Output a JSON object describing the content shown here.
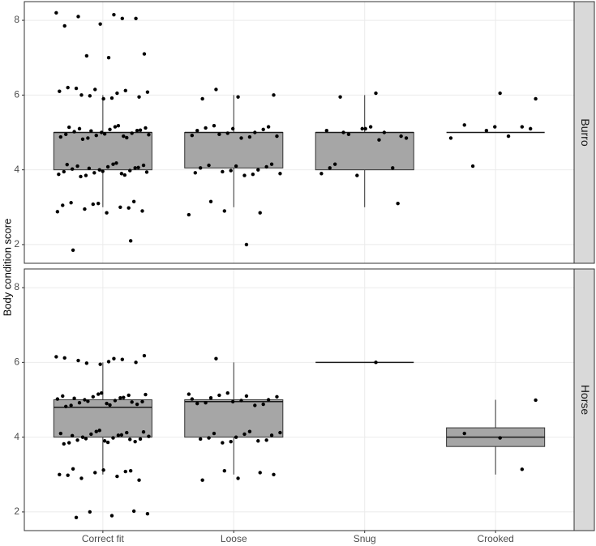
{
  "chart_data": {
    "type": "box",
    "y_label": "Body condition score",
    "categories": [
      "Correct fit",
      "Loose",
      "Snug",
      "Crooked"
    ],
    "ylim": [
      1.5,
      8.5
    ],
    "yticks": [
      2,
      4,
      6,
      8
    ],
    "grid": true,
    "facets": [
      {
        "name": "Burro",
        "boxes": [
          {
            "low": 3,
            "q1": 4,
            "median": 5,
            "q3": 5,
            "high": 6
          },
          {
            "low": 3,
            "q1": 4.05,
            "median": 5,
            "q3": 5,
            "high": 6
          },
          {
            "low": 3,
            "q1": 4,
            "median": 5,
            "q3": 5,
            "high": 6
          },
          {
            "low": 5,
            "q1": 5,
            "median": 5,
            "q3": 5,
            "high": 5
          }
        ],
        "points": [
          [
            8.2,
            8.15,
            8.1,
            8.05,
            7.9,
            7.85,
            8.05,
            7.05,
            7.1,
            7.0,
            1.85,
            2.1,
            6.15,
            6.1,
            6.05,
            6.0,
            5.95,
            5.9,
            6.2,
            6.12,
            5.98,
            6.08,
            5.92,
            6.18,
            3.15,
            3.1,
            3.05,
            3.0,
            2.95,
            2.9,
            2.85,
            3.12,
            2.98,
            3.08,
            2.88,
            5.15,
            5.1,
            5.05,
            5.0,
            4.95,
            4.9,
            4.85,
            5.12,
            5.08,
            5.02,
            4.98,
            4.92,
            4.88,
            5.18,
            4.82,
            5.06,
            4.96,
            5.14,
            4.86,
            5.04,
            4.94,
            4.15,
            4.1,
            4.05,
            4.0,
            3.95,
            3.9,
            3.85,
            4.12,
            4.08,
            4.02,
            3.98,
            3.92,
            3.88,
            4.18,
            3.82,
            4.06,
            3.96,
            4.14,
            3.86,
            4.04,
            3.94
          ],
          [
            6.15,
            6.0,
            5.95,
            5.9,
            2.85,
            2.9,
            2.8,
            2.0,
            3.15,
            5.15,
            5.1,
            5.05,
            5.0,
            4.95,
            4.9,
            4.85,
            5.12,
            5.08,
            4.98,
            4.92,
            4.88,
            5.18,
            4.15,
            4.1,
            4.05,
            4.0,
            3.95,
            3.9,
            3.85,
            4.12,
            4.08,
            3.98,
            3.92,
            3.88
          ],
          [
            6.05,
            5.95,
            3.1,
            5.1,
            5.05,
            5.0,
            4.95,
            4.85,
            5.15,
            4.15,
            4.05,
            3.85,
            3.9,
            4.8,
            5.0,
            4.9,
            5.1,
            4.05
          ],
          [
            5.9,
            6.05,
            5.2,
            5.15,
            5.05,
            4.85,
            4.9,
            4.1,
            5.1,
            5.15
          ]
        ]
      },
      {
        "name": "Horse",
        "boxes": [
          {
            "low": 3,
            "q1": 4,
            "median": 4.8,
            "q3": 5,
            "high": 6
          },
          {
            "low": 3,
            "q1": 4,
            "median": 4.95,
            "q3": 5,
            "high": 6
          },
          {
            "low": 6,
            "q1": 6,
            "median": 6,
            "q3": 6,
            "high": 6
          },
          {
            "low": 3,
            "q1": 3.75,
            "median": 4,
            "q3": 4.25,
            "high": 5
          }
        ],
        "points": [
          [
            6.15,
            6.1,
            6.05,
            6.0,
            5.95,
            6.12,
            6.08,
            5.98,
            6.18,
            6.02,
            3.15,
            3.1,
            3.05,
            3.0,
            2.95,
            2.9,
            2.85,
            3.12,
            2.98,
            3.08,
            2.0,
            1.95,
            1.9,
            1.85,
            2.02,
            5.15,
            5.1,
            5.05,
            5.0,
            4.95,
            4.9,
            4.85,
            5.12,
            5.08,
            5.02,
            4.98,
            4.92,
            4.88,
            5.18,
            4.82,
            5.06,
            4.96,
            5.14,
            4.86,
            5.04,
            4.94,
            4.15,
            4.1,
            4.05,
            4.0,
            3.95,
            3.9,
            3.85,
            4.12,
            4.08,
            4.02,
            3.98,
            3.92,
            3.88,
            4.18,
            3.82,
            4.06,
            3.96,
            4.14,
            3.86,
            4.04,
            3.94
          ],
          [
            6.1,
            3.0,
            2.9,
            2.85,
            3.05,
            3.1,
            5.15,
            5.1,
            5.05,
            5.0,
            4.95,
            4.9,
            4.85,
            5.12,
            5.08,
            4.98,
            4.92,
            4.88,
            5.18,
            5.02,
            4.15,
            4.1,
            4.05,
            4.0,
            3.95,
            3.9,
            3.85,
            4.12,
            4.08,
            3.98,
            3.92,
            3.88
          ],
          [
            6.0
          ],
          [
            4.99,
            3.98,
            4.1,
            3.14
          ]
        ]
      }
    ]
  }
}
